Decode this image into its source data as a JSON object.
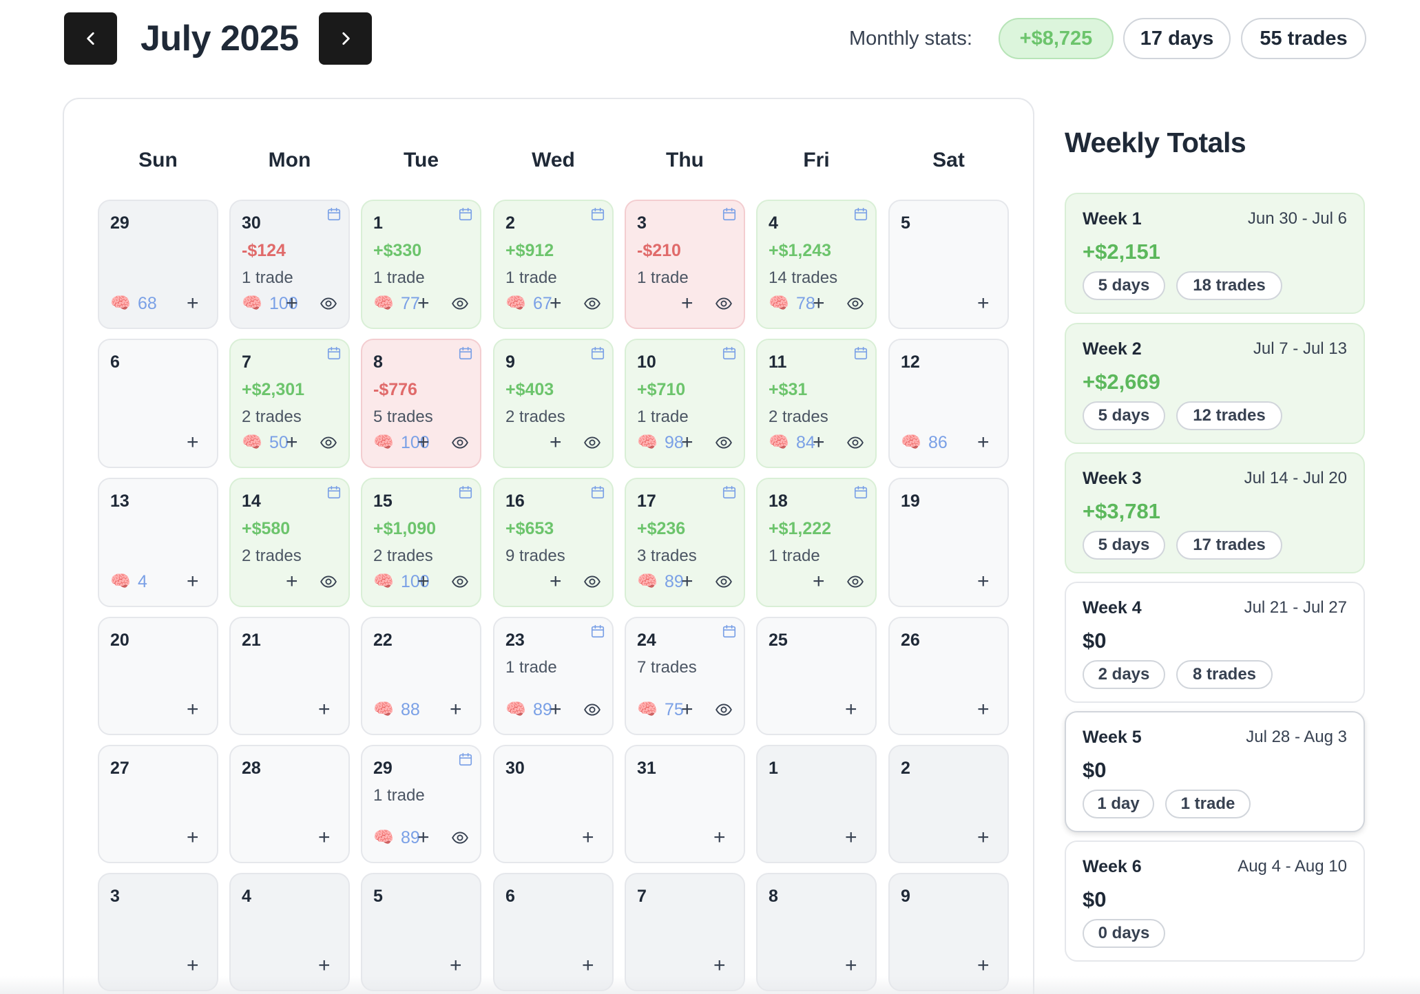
{
  "header": {
    "month_title": "July 2025",
    "stats_label": "Monthly stats:",
    "stats": {
      "pnl": "+$8,725",
      "days": "17 days",
      "trades": "55 trades"
    }
  },
  "weekday_headers": [
    "Sun",
    "Mon",
    "Tue",
    "Wed",
    "Thu",
    "Fri",
    "Sat"
  ],
  "calendar": {
    "weeks": [
      [
        {
          "day": "29",
          "state": "out",
          "brain": "68"
        },
        {
          "day": "30",
          "state": "out",
          "pnl": "-$124",
          "pnl_sign": "neg",
          "trades": "1 trade",
          "brain": "100",
          "journal": true
        },
        {
          "day": "1",
          "state": "win",
          "pnl": "+$330",
          "pnl_sign": "pos",
          "trades": "1 trade",
          "brain": "77",
          "journal": true
        },
        {
          "day": "2",
          "state": "win",
          "pnl": "+$912",
          "pnl_sign": "pos",
          "trades": "1 trade",
          "brain": "67",
          "journal": true
        },
        {
          "day": "3",
          "state": "loss",
          "pnl": "-$210",
          "pnl_sign": "neg",
          "trades": "1 trade",
          "journal": true
        },
        {
          "day": "4",
          "state": "win",
          "pnl": "+$1,243",
          "pnl_sign": "pos",
          "trades": "14 trades",
          "brain": "78",
          "journal": true
        },
        {
          "day": "5",
          "state": "empty"
        }
      ],
      [
        {
          "day": "6",
          "state": "empty"
        },
        {
          "day": "7",
          "state": "win",
          "pnl": "+$2,301",
          "pnl_sign": "pos",
          "trades": "2 trades",
          "brain": "50",
          "journal": true
        },
        {
          "day": "8",
          "state": "loss",
          "pnl": "-$776",
          "pnl_sign": "neg",
          "trades": "5 trades",
          "brain": "100",
          "journal": true
        },
        {
          "day": "9",
          "state": "win",
          "pnl": "+$403",
          "pnl_sign": "pos",
          "trades": "2 trades",
          "journal": true
        },
        {
          "day": "10",
          "state": "win",
          "pnl": "+$710",
          "pnl_sign": "pos",
          "trades": "1 trade",
          "brain": "98",
          "journal": true
        },
        {
          "day": "11",
          "state": "win",
          "pnl": "+$31",
          "pnl_sign": "pos",
          "trades": "2 trades",
          "brain": "84",
          "journal": true
        },
        {
          "day": "12",
          "state": "empty",
          "brain": "86"
        }
      ],
      [
        {
          "day": "13",
          "state": "empty",
          "brain": "4"
        },
        {
          "day": "14",
          "state": "win",
          "pnl": "+$580",
          "pnl_sign": "pos",
          "trades": "2 trades",
          "journal": true
        },
        {
          "day": "15",
          "state": "win",
          "pnl": "+$1,090",
          "pnl_sign": "pos",
          "trades": "2 trades",
          "brain": "100",
          "journal": true
        },
        {
          "day": "16",
          "state": "win",
          "pnl": "+$653",
          "pnl_sign": "pos",
          "trades": "9 trades",
          "journal": true
        },
        {
          "day": "17",
          "state": "win",
          "pnl": "+$236",
          "pnl_sign": "pos",
          "trades": "3 trades",
          "brain": "89",
          "journal": true
        },
        {
          "day": "18",
          "state": "win",
          "pnl": "+$1,222",
          "pnl_sign": "pos",
          "trades": "1 trade",
          "journal": true
        },
        {
          "day": "19",
          "state": "empty"
        }
      ],
      [
        {
          "day": "20",
          "state": "empty"
        },
        {
          "day": "21",
          "state": "empty"
        },
        {
          "day": "22",
          "state": "empty",
          "brain": "88"
        },
        {
          "day": "23",
          "state": "empty",
          "trades": "1 trade",
          "brain": "89",
          "journal": true
        },
        {
          "day": "24",
          "state": "empty",
          "trades": "7 trades",
          "brain": "75",
          "journal": true
        },
        {
          "day": "25",
          "state": "empty"
        },
        {
          "day": "26",
          "state": "empty"
        }
      ],
      [
        {
          "day": "27",
          "state": "empty"
        },
        {
          "day": "28",
          "state": "empty"
        },
        {
          "day": "29",
          "state": "empty",
          "trades": "1 trade",
          "brain": "89",
          "journal": true
        },
        {
          "day": "30",
          "state": "empty"
        },
        {
          "day": "31",
          "state": "empty"
        },
        {
          "day": "1",
          "state": "out"
        },
        {
          "day": "2",
          "state": "out"
        }
      ],
      [
        {
          "day": "3",
          "state": "out"
        },
        {
          "day": "4",
          "state": "out"
        },
        {
          "day": "5",
          "state": "out"
        },
        {
          "day": "6",
          "state": "out"
        },
        {
          "day": "7",
          "state": "out"
        },
        {
          "day": "8",
          "state": "out"
        },
        {
          "day": "9",
          "state": "out"
        }
      ]
    ]
  },
  "weekly": {
    "title": "Weekly Totals",
    "weeks": [
      {
        "name": "Week 1",
        "range": "Jun 30 - Jul 6",
        "total": "+$2,151",
        "positive": true,
        "days": "5 days",
        "trades": "18 trades"
      },
      {
        "name": "Week 2",
        "range": "Jul 7 - Jul 13",
        "total": "+$2,669",
        "positive": true,
        "days": "5 days",
        "trades": "12 trades"
      },
      {
        "name": "Week 3",
        "range": "Jul 14 - Jul 20",
        "total": "+$3,781",
        "positive": true,
        "days": "5 days",
        "trades": "17 trades"
      },
      {
        "name": "Week 4",
        "range": "Jul 21 - Jul 27",
        "total": "$0",
        "positive": false,
        "days": "2 days",
        "trades": "8 trades"
      },
      {
        "name": "Week 5",
        "range": "Jul 28 - Aug 3",
        "total": "$0",
        "positive": false,
        "days": "1 day",
        "trades": "1 trade",
        "highlighted": true
      },
      {
        "name": "Week 6",
        "range": "Aug 4 - Aug 10",
        "total": "$0",
        "positive": false,
        "days": "0 days"
      }
    ]
  },
  "icons": {
    "prev": "chevron-left-icon",
    "next": "chevron-right-icon",
    "journal": "calendar-icon",
    "brain": "brain-icon",
    "add": "plus-icon",
    "view": "eye-icon"
  },
  "colors": {
    "positive": "#6cc46c",
    "negative": "#e06a6a",
    "win_bg": "#eef8ec",
    "loss_bg": "#fbe9ea",
    "brain_score": "#7aa0e6",
    "nav_button": "#1a1a1a"
  }
}
